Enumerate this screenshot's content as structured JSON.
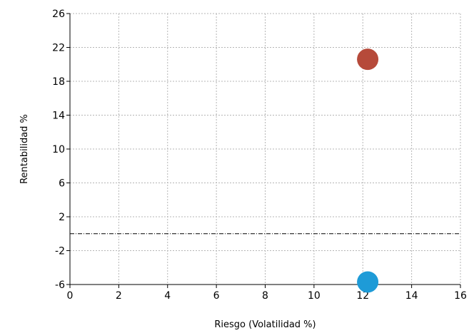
{
  "chart_data": {
    "type": "scatter",
    "title": "",
    "xlabel": "Riesgo (Volatilidad %)",
    "ylabel": "Rentabilidad %",
    "xlim": [
      0,
      16
    ],
    "ylim": [
      -6,
      26
    ],
    "xticks": [
      0,
      2,
      4,
      6,
      8,
      10,
      12,
      14,
      16
    ],
    "yticks": [
      -6,
      -2,
      2,
      6,
      10,
      14,
      18,
      22,
      26
    ],
    "grid": true,
    "reference_line": {
      "y": 0,
      "style": "dash-dot"
    },
    "series": [
      {
        "color": "#b64a3a",
        "points": [
          {
            "x": 12.2,
            "y": 20.6
          }
        ]
      },
      {
        "color": "#1e9bd7",
        "points": [
          {
            "x": 12.2,
            "y": -5.7
          }
        ]
      }
    ]
  }
}
